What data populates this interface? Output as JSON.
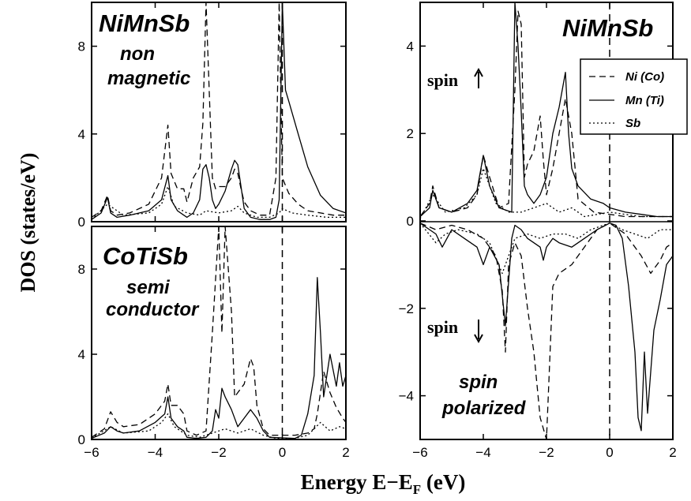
{
  "figure": {
    "ylabel": "DOS (states/eV)",
    "xlabel_main": "Energy E−E",
    "xlabel_sub": "F",
    "xlabel_unit": " (eV)"
  },
  "legend": {
    "entries": [
      {
        "label": "Ni (Co)",
        "style": "dashed"
      },
      {
        "label": "Mn (Ti)",
        "style": "solid"
      },
      {
        "label": "Sb",
        "style": "dotted"
      }
    ]
  },
  "colors": {
    "line": "#000000",
    "background": "#ffffff"
  },
  "chart_data": [
    {
      "id": "nimnsb_nonmagnetic",
      "type": "line",
      "title": "NiMnSb",
      "subtitle": [
        "non",
        "magnetic"
      ],
      "xlim": [
        -6,
        2
      ],
      "ylim": [
        0,
        10
      ],
      "xticks": [],
      "yticks": [
        "0",
        "4",
        "8"
      ],
      "series": [
        {
          "name": "Ni (Co)",
          "style": "dashed",
          "x": [
            -6,
            -5.7,
            -5.5,
            -5.4,
            -5.2,
            -4.8,
            -4.2,
            -3.8,
            -3.6,
            -3.5,
            -3.3,
            -3.1,
            -3.0,
            -2.8,
            -2.6,
            -2.5,
            -2.4,
            -2.3,
            -2.2,
            -2.1,
            -2.0,
            -1.8,
            -1.6,
            -1.5,
            -1.4,
            -1.3,
            -1.2,
            -1.0,
            -0.7,
            -0.4,
            -0.2,
            -0.1,
            0,
            0.2,
            0.5,
            0.8,
            1.2,
            1.6,
            2
          ],
          "y": [
            0.2,
            0.5,
            1.2,
            0.5,
            0.3,
            0.4,
            0.8,
            2,
            4.4,
            2.2,
            1.5,
            1.5,
            0.9,
            2.0,
            2.5,
            4.5,
            10,
            6,
            2.0,
            1.5,
            1.6,
            1.6,
            2.0,
            2.4,
            2.2,
            1.5,
            0.9,
            0.5,
            0.3,
            0.3,
            2.0,
            10,
            2.0,
            1.3,
            0.8,
            0.5,
            0.4,
            0.3,
            0.3
          ]
        },
        {
          "name": "Mn (Ti)",
          "style": "solid",
          "x": [
            -6,
            -5.7,
            -5.5,
            -5.4,
            -5.2,
            -4.8,
            -4.2,
            -3.8,
            -3.6,
            -3.5,
            -3.3,
            -3.1,
            -3.0,
            -2.8,
            -2.6,
            -2.5,
            -2.4,
            -2.3,
            -2.2,
            -2.1,
            -2.0,
            -1.8,
            -1.6,
            -1.5,
            -1.4,
            -1.3,
            -1.2,
            -1.0,
            -0.7,
            -0.4,
            -0.2,
            -0.1,
            0,
            0.1,
            0.2,
            0.5,
            0.8,
            1.2,
            1.6,
            2
          ],
          "y": [
            0.1,
            0.4,
            1.1,
            0.4,
            0.2,
            0.3,
            0.5,
            1.0,
            2.1,
            1.0,
            0.5,
            0.3,
            0.2,
            0.4,
            1.0,
            2.4,
            2.6,
            2.0,
            1.0,
            0.6,
            0.8,
            1.4,
            2.4,
            2.8,
            2.6,
            1.6,
            0.6,
            0.2,
            0.1,
            0.1,
            0.2,
            1.0,
            10,
            6.0,
            5.5,
            4.0,
            2.5,
            1.2,
            0.6,
            0.4
          ]
        },
        {
          "name": "Sb",
          "style": "dotted",
          "x": [
            -6,
            -5.5,
            -5.0,
            -4.2,
            -3.8,
            -3.6,
            -3.4,
            -3.0,
            -2.6,
            -2.4,
            -2.0,
            -1.6,
            -1.4,
            -1.2,
            -0.8,
            -0.4,
            -0.1,
            0,
            0.3,
            0.8,
            1.4,
            2
          ],
          "y": [
            0.1,
            0.8,
            0.3,
            0.4,
            0.8,
            1.6,
            0.7,
            0.4,
            0.3,
            0.5,
            0.4,
            0.5,
            0.7,
            0.4,
            0.2,
            0.2,
            0.4,
            0.6,
            0.4,
            0.3,
            0.2,
            0.2
          ]
        }
      ]
    },
    {
      "id": "cotisb_semiconductor",
      "type": "line",
      "title": "CoTiSb",
      "subtitle": [
        "semi",
        "conductor"
      ],
      "xlim": [
        -6,
        2
      ],
      "ylim": [
        0,
        10
      ],
      "xticks": [
        "−6",
        "−4",
        "−2",
        "0",
        "2"
      ],
      "yticks": [
        "0",
        "4",
        "8"
      ],
      "series": [
        {
          "name": "Ni (Co)",
          "style": "dashed",
          "x": [
            -6,
            -5.6,
            -5.4,
            -5.2,
            -5.0,
            -4.5,
            -4.0,
            -3.7,
            -3.6,
            -3.5,
            -3.3,
            -3.1,
            -3.0,
            -2.7,
            -2.4,
            -2.2,
            -2.0,
            -1.9,
            -1.8,
            -1.6,
            -1.5,
            -1.4,
            -1.2,
            -1.0,
            -0.9,
            -0.8,
            -0.6,
            -0.4,
            0.4,
            0.8,
            1.0,
            1.1,
            1.3,
            1.5,
            1.7,
            1.9,
            2
          ],
          "y": [
            0.1,
            0.5,
            1.3,
            0.8,
            0.6,
            0.7,
            1.2,
            1.8,
            2.6,
            1.6,
            1.6,
            1.2,
            0.4,
            0.2,
            0.4,
            5.0,
            10,
            5.0,
            10,
            6.0,
            2.0,
            2.2,
            2.6,
            3.8,
            3.4,
            1.6,
            0.5,
            0.2,
            0.2,
            0.3,
            0.5,
            1.2,
            3.2,
            2.2,
            1.5,
            1.0,
            0.8
          ]
        },
        {
          "name": "Mn (Ti)",
          "style": "solid",
          "x": [
            -6,
            -5.6,
            -5.4,
            -5.2,
            -5.0,
            -4.5,
            -4.0,
            -3.7,
            -3.6,
            -3.5,
            -3.3,
            -3.1,
            -3.0,
            -2.7,
            -2.4,
            -2.2,
            -2.1,
            -2.0,
            -1.9,
            -1.8,
            -1.6,
            -1.4,
            -1.2,
            -1.0,
            -0.8,
            -0.6,
            -0.4,
            0.4,
            0.6,
            0.8,
            1.0,
            1.1,
            1.2,
            1.3,
            1.5,
            1.7,
            1.8,
            1.9,
            2
          ],
          "y": [
            0.05,
            0.3,
            0.6,
            0.4,
            0.3,
            0.4,
            0.8,
            1.2,
            2.0,
            1.0,
            0.6,
            0.4,
            0.1,
            0.05,
            0.1,
            0.4,
            1.4,
            1.0,
            2.4,
            2.0,
            1.4,
            0.6,
            1.0,
            1.4,
            1.0,
            0.4,
            0.1,
            0.05,
            0.2,
            1.2,
            3.0,
            7.6,
            5.0,
            2.0,
            4.0,
            2.5,
            3.6,
            2.5,
            3.0
          ]
        },
        {
          "name": "Sb",
          "style": "dotted",
          "x": [
            -6,
            -5.4,
            -5.0,
            -4.2,
            -3.8,
            -3.6,
            -3.4,
            -3.0,
            -2.6,
            -2.2,
            -2.0,
            -1.8,
            -1.4,
            -1.0,
            -0.6,
            -0.2,
            0.4,
            0.8,
            1.0,
            1.2,
            1.5,
            1.8,
            2
          ],
          "y": [
            0.05,
            0.6,
            0.3,
            0.4,
            0.8,
            1.2,
            0.6,
            0.2,
            0.1,
            0.3,
            0.4,
            0.5,
            0.3,
            0.5,
            0.2,
            0.05,
            0.05,
            0.2,
            0.5,
            0.8,
            0.4,
            0.6,
            0.5
          ]
        }
      ]
    },
    {
      "id": "nimnsb_spin_polarized",
      "type": "line",
      "title": "NiMnSb",
      "subtitle": [
        "spin",
        "polarized"
      ],
      "spin_up_label": "spin",
      "spin_down_label": "spin",
      "xlim": [
        -6,
        2
      ],
      "ylim": [
        -5,
        5
      ],
      "xticks": [
        "−6",
        "−4",
        "−2",
        "0",
        "2"
      ],
      "yticks": [
        "−4",
        "−2",
        "0",
        "2",
        "4"
      ],
      "series": [
        {
          "name": "Ni (Co)",
          "style": "dashed",
          "x": [
            -6,
            -5.7,
            -5.6,
            -5.4,
            -5.0,
            -4.5,
            -4.2,
            -4.0,
            -3.8,
            -3.5,
            -3.2,
            -3.0,
            -2.9,
            -2.8,
            -2.7,
            -2.6,
            -2.4,
            -2.2,
            -2.1,
            -2.0,
            -1.8,
            -1.6,
            -1.4,
            -1.2,
            -1.0,
            -0.5,
            0,
            0.5,
            1.0,
            1.5,
            2
          ],
          "y": [
            0.1,
            0.4,
            0.8,
            0.3,
            0.2,
            0.3,
            0.6,
            1.5,
            1.0,
            0.3,
            0.4,
            3.0,
            4.8,
            4.5,
            1.0,
            1.3,
            1.6,
            2.4,
            1.4,
            0.6,
            1.2,
            2.0,
            2.8,
            2.0,
            0.5,
            0.2,
            0.15,
            0.1,
            0.1,
            0.1,
            0.1
          ]
        },
        {
          "name": "Mn (Ti)",
          "style": "solid",
          "x": [
            -6,
            -5.7,
            -5.6,
            -5.4,
            -5.0,
            -4.5,
            -4.2,
            -4.0,
            -3.8,
            -3.5,
            -3.1,
            -3.0,
            -2.9,
            -2.8,
            -2.7,
            -2.6,
            -2.4,
            -2.2,
            -2.0,
            -1.8,
            -1.6,
            -1.4,
            -1.3,
            -1.2,
            -1.0,
            -0.6,
            -0.2,
            0,
            0.5,
            1.0,
            1.5,
            2
          ],
          "y": [
            0.1,
            0.3,
            0.7,
            0.3,
            0.2,
            0.4,
            0.7,
            1.5,
            0.8,
            0.3,
            0.2,
            5.0,
            4.0,
            2.5,
            0.8,
            0.6,
            0.4,
            0.6,
            1.0,
            2.0,
            2.6,
            3.4,
            2.0,
            1.2,
            0.8,
            0.5,
            0.4,
            0.3,
            0.2,
            0.15,
            0.1,
            0.1
          ]
        },
        {
          "name": "Sb",
          "style": "dotted",
          "x": [
            -6,
            -5.6,
            -5.2,
            -4.6,
            -4.2,
            -4.0,
            -3.6,
            -3.2,
            -2.8,
            -2.4,
            -2.0,
            -1.6,
            -1.2,
            -0.8,
            -0.4,
            0,
            0.5,
            1.0,
            1.5,
            2
          ],
          "y": [
            0.05,
            0.6,
            0.2,
            0.3,
            0.6,
            1.2,
            0.4,
            0.2,
            0.2,
            0.3,
            0.4,
            0.2,
            0.3,
            0.1,
            0.15,
            0.2,
            0.15,
            0.1,
            0.1,
            0.1
          ]
        },
        {
          "name": "Ni (Co)",
          "style": "dashed",
          "x": [
            -6,
            -5.5,
            -5.0,
            -4.5,
            -4.0,
            -3.6,
            -3.4,
            -3.3,
            -3.2,
            -3.0,
            -2.8,
            -2.6,
            -2.4,
            -2.2,
            -2.0,
            -1.8,
            -1.6,
            -1.2,
            -0.8,
            -0.4,
            0,
            0.3,
            0.5,
            0.7,
            1.0,
            1.3,
            1.6,
            1.8,
            2
          ],
          "y": [
            -0.05,
            -0.2,
            -0.1,
            -0.2,
            -0.4,
            -0.8,
            -1.6,
            -3.0,
            -1.0,
            -0.5,
            -0.8,
            -2.0,
            -3.0,
            -4.5,
            -5.0,
            -1.5,
            -1.2,
            -1.0,
            -0.6,
            -0.2,
            -0.05,
            -0.2,
            -0.3,
            -0.5,
            -0.8,
            -1.2,
            -0.9,
            -0.6,
            -0.5
          ]
        },
        {
          "name": "Mn (Ti)",
          "style": "solid",
          "x": [
            -6,
            -5.7,
            -5.5,
            -5.3,
            -5.0,
            -4.6,
            -4.2,
            -4.0,
            -3.8,
            -3.5,
            -3.3,
            -3.1,
            -3.0,
            -2.8,
            -2.6,
            -2.4,
            -2.2,
            -2.1,
            -2.0,
            -1.8,
            -1.6,
            -1.2,
            -0.8,
            -0.4,
            0,
            0.2,
            0.4,
            0.6,
            0.8,
            0.9,
            1.0,
            1.1,
            1.2,
            1.4,
            1.6,
            1.8,
            2
          ],
          "y": [
            -0.05,
            -0.2,
            -0.3,
            -0.6,
            -0.2,
            -0.4,
            -0.6,
            -1.0,
            -0.6,
            -1.0,
            -2.4,
            -0.4,
            -0.1,
            -0.2,
            -0.4,
            -0.5,
            -0.6,
            -0.9,
            -0.6,
            -0.4,
            -0.5,
            -0.6,
            -0.4,
            -0.2,
            -0.05,
            -0.1,
            -0.4,
            -1.5,
            -3.0,
            -4.5,
            -4.8,
            -3.0,
            -4.4,
            -2.5,
            -1.8,
            -1.0,
            -0.8
          ]
        },
        {
          "name": "Sb",
          "style": "dotted",
          "x": [
            -6,
            -5.5,
            -5.2,
            -4.8,
            -4.2,
            -3.8,
            -3.4,
            -3.0,
            -2.6,
            -2.2,
            -1.8,
            -1.4,
            -1.0,
            -0.6,
            -0.2,
            0,
            0.4,
            0.8,
            1.2,
            1.6,
            2
          ],
          "y": [
            -0.05,
            -0.5,
            -0.3,
            -0.2,
            -0.3,
            -0.5,
            -1.2,
            -0.4,
            -0.3,
            -0.4,
            -0.3,
            -0.3,
            -0.4,
            -0.2,
            -0.1,
            -0.05,
            -0.2,
            -0.3,
            -0.4,
            -0.2,
            -0.2
          ]
        }
      ]
    }
  ]
}
